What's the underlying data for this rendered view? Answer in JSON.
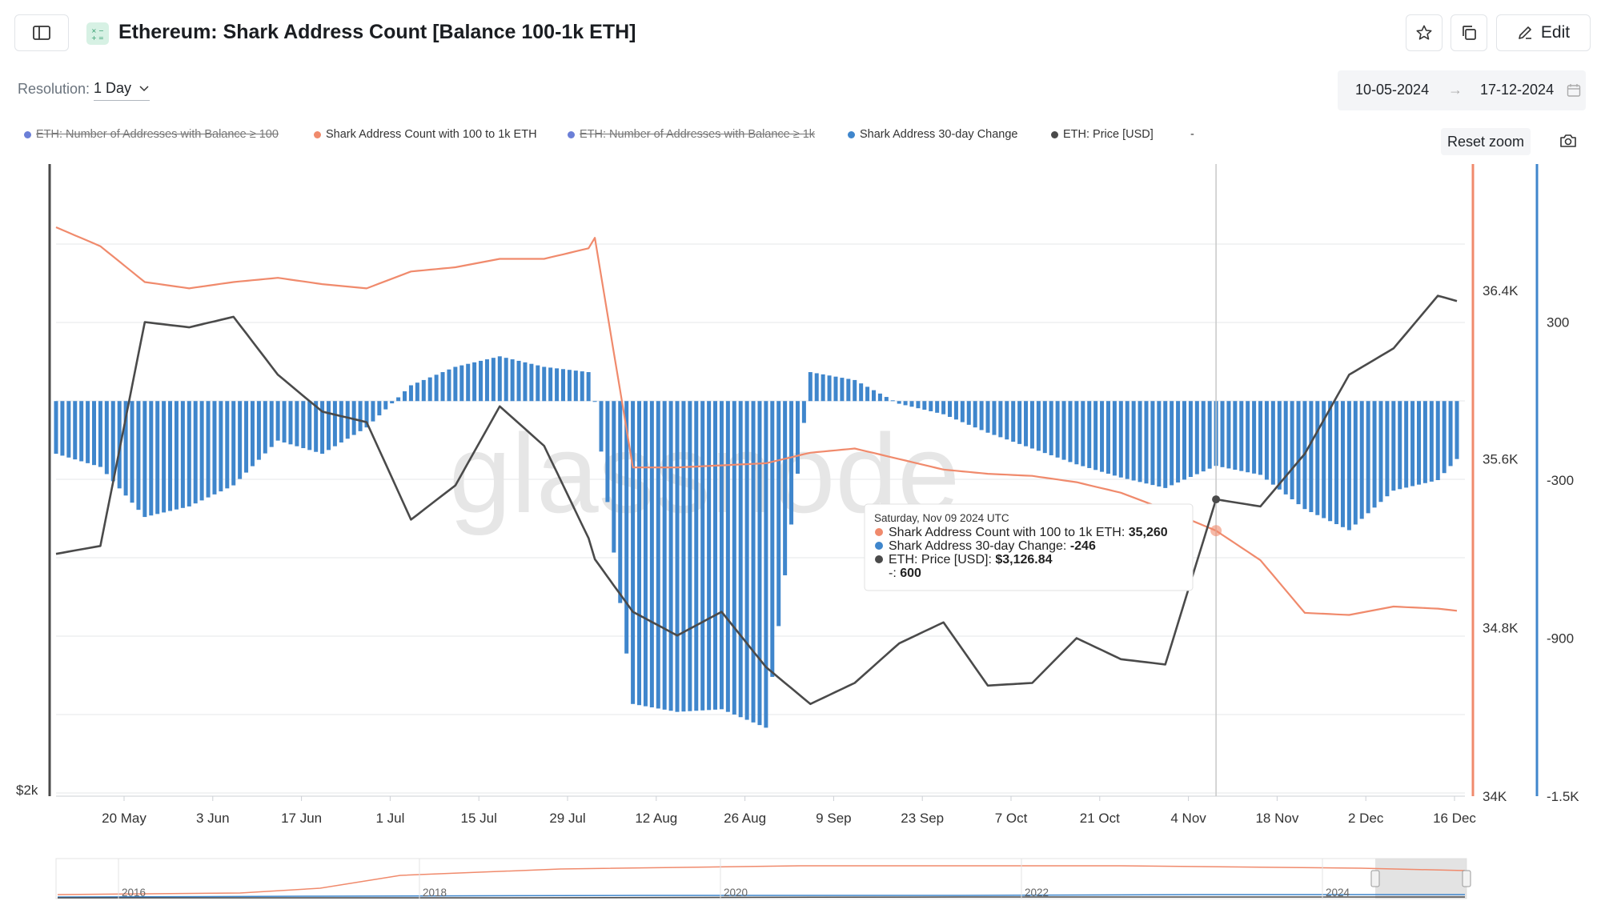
{
  "header": {
    "title": "Ethereum: Shark Address Count [Balance 100-1k ETH]",
    "edit_label": "Edit"
  },
  "controls": {
    "resolution_label": "Resolution:",
    "resolution_value": "1 Day",
    "date_from": "10-05-2024",
    "date_arrow": "→",
    "date_to": "17-12-2024",
    "reset_zoom": "Reset zoom"
  },
  "legend": [
    {
      "label": "ETH: Number of Addresses with Balance ≥ 100",
      "color": "#6b7fd7",
      "hidden": true
    },
    {
      "label": "Shark Address Count with 100 to 1k ETH",
      "color": "#f08a6c",
      "hidden": false
    },
    {
      "label": "ETH: Number of Addresses with Balance ≥ 1k",
      "color": "#6b7fd7",
      "hidden": true
    },
    {
      "label": "Shark Address 30-day Change",
      "color": "#3f86cc",
      "hidden": false
    },
    {
      "label": "ETH: Price [USD]",
      "color": "#4a4a4a",
      "hidden": false
    },
    {
      "label": "-",
      "color": "#999999",
      "hidden": false
    }
  ],
  "watermark": "glassnode",
  "tooltip": {
    "date": "Saturday, Nov 09 2024 UTC",
    "rows": [
      {
        "label": "Shark Address Count with 100 to 1k ETH: ",
        "value": "35,260",
        "color": "#f08a6c"
      },
      {
        "label": "Shark Address 30-day Change: ",
        "value": "-246",
        "color": "#3f86cc"
      },
      {
        "label": "ETH: Price [USD]: ",
        "value": "$3,126.84",
        "color": "#4a4a4a"
      },
      {
        "label": "-: ",
        "value": "600",
        "color": null
      }
    ]
  },
  "chart_data": {
    "type": "line",
    "x_ticks": [
      "20 May",
      "3 Jun",
      "17 Jun",
      "1 Jul",
      "15 Jul",
      "29 Jul",
      "12 Aug",
      "26 Aug",
      "9 Sep",
      "23 Sep",
      "7 Oct",
      "21 Oct",
      "4 Nov",
      "18 Nov",
      "2 Dec",
      "16 Dec"
    ],
    "y_left_ticks": [
      "$2k"
    ],
    "y_right_ticks": [
      "36.4K",
      "35.6K",
      "34.8K",
      "34K"
    ],
    "y_right2_ticks": [
      "300",
      "-300",
      "-900",
      "-1.5K"
    ],
    "ylim_count": [
      34000,
      37000
    ],
    "ylim_change": [
      -1500,
      900
    ],
    "ylim_price": [
      2000,
      4400
    ],
    "dates": [
      "2024-05-10",
      "2024-05-17",
      "2024-05-24",
      "2024-05-31",
      "2024-06-07",
      "2024-06-14",
      "2024-06-21",
      "2024-06-28",
      "2024-07-05",
      "2024-07-12",
      "2024-07-19",
      "2024-07-26",
      "2024-08-02",
      "2024-08-03",
      "2024-08-09",
      "2024-08-16",
      "2024-08-23",
      "2024-08-30",
      "2024-09-06",
      "2024-09-13",
      "2024-09-20",
      "2024-09-27",
      "2024-10-04",
      "2024-10-11",
      "2024-10-18",
      "2024-10-25",
      "2024-11-01",
      "2024-11-09",
      "2024-11-16",
      "2024-11-23",
      "2024-11-30",
      "2024-12-07",
      "2024-12-14",
      "2024-12-17"
    ],
    "series": [
      {
        "name": "Shark Address Count with 100 to 1k ETH",
        "color": "#f08a6c",
        "axis": "right",
        "values": [
          36700,
          36610,
          36440,
          36410,
          36440,
          36460,
          36430,
          36410,
          36490,
          36510,
          36550,
          36550,
          36600,
          36650,
          35560,
          35560,
          35570,
          35580,
          35630,
          35650,
          35600,
          35550,
          35530,
          35520,
          35490,
          35440,
          35360,
          35260,
          35120,
          34870,
          34860,
          34900,
          34890,
          34880
        ]
      },
      {
        "name": "Shark Address 30-day Change",
        "color": "#3f86cc",
        "axis": "right2",
        "values": [
          -200,
          -250,
          -440,
          -400,
          -320,
          -150,
          -200,
          -100,
          60,
          130,
          170,
          130,
          110,
          0,
          -1150,
          -1180,
          -1170,
          -1240,
          110,
          80,
          -10,
          -50,
          -120,
          -180,
          -240,
          -290,
          -330,
          -246,
          -280,
          -410,
          -490,
          -340,
          -300,
          -220
        ]
      },
      {
        "name": "ETH: Price [USD]",
        "color": "#4a4a4a",
        "axis": "left",
        "values": [
          2920,
          2950,
          3800,
          3780,
          3820,
          3600,
          3460,
          3420,
          3050,
          3180,
          3480,
          3330,
          2980,
          2900,
          2700,
          2610,
          2700,
          2490,
          2350,
          2430,
          2580,
          2660,
          2420,
          2430,
          2600,
          2520,
          2500,
          3126.84,
          3100,
          3300,
          3600,
          3700,
          3900,
          3880
        ]
      }
    ]
  }
}
